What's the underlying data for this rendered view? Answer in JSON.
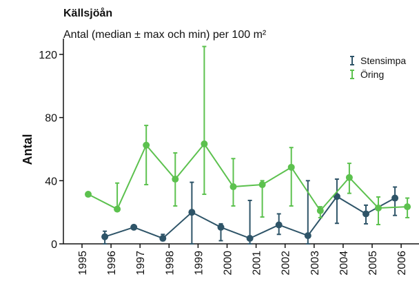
{
  "chart_data": {
    "type": "errorbar-line",
    "title": "Källsjöån",
    "subtitle": "Antal (median ± max och min) per 100 m²",
    "y_label": "Antal",
    "categories": [
      "1995",
      "1996",
      "1997",
      "1998",
      "1999",
      "2000",
      "2001",
      "2002",
      "2003",
      "2004",
      "2005",
      "2006"
    ],
    "ylim": [
      0,
      130
    ],
    "yticks": [
      0,
      40,
      80,
      120
    ],
    "legend": "top-right",
    "series": [
      {
        "name": "Stensimpa",
        "color": "#2e5468",
        "values": [
          null,
          4.5,
          10.5,
          3.5,
          20,
          10.5,
          3.5,
          12,
          5.2,
          30,
          19,
          29
        ],
        "max": [
          null,
          8,
          10.5,
          6,
          39,
          12.7,
          27.5,
          19,
          40,
          41,
          24.5,
          36
        ],
        "min": [
          null,
          0,
          10.5,
          2,
          0,
          2,
          0,
          6,
          0,
          13,
          12.7,
          18
        ]
      },
      {
        "name": "Öring",
        "color": "#5cc14e",
        "values": [
          31.4,
          22,
          62.5,
          41,
          63.3,
          36.2,
          37.5,
          48.5,
          21,
          42,
          22.7,
          23.5
        ],
        "max": [
          null,
          38.5,
          75,
          57.6,
          125,
          54,
          40,
          61,
          23.5,
          51,
          29.7,
          29
        ],
        "min": [
          null,
          22,
          37.5,
          24,
          31.4,
          24,
          17,
          24,
          16.6,
          32,
          12.2,
          16.6
        ]
      }
    ]
  }
}
